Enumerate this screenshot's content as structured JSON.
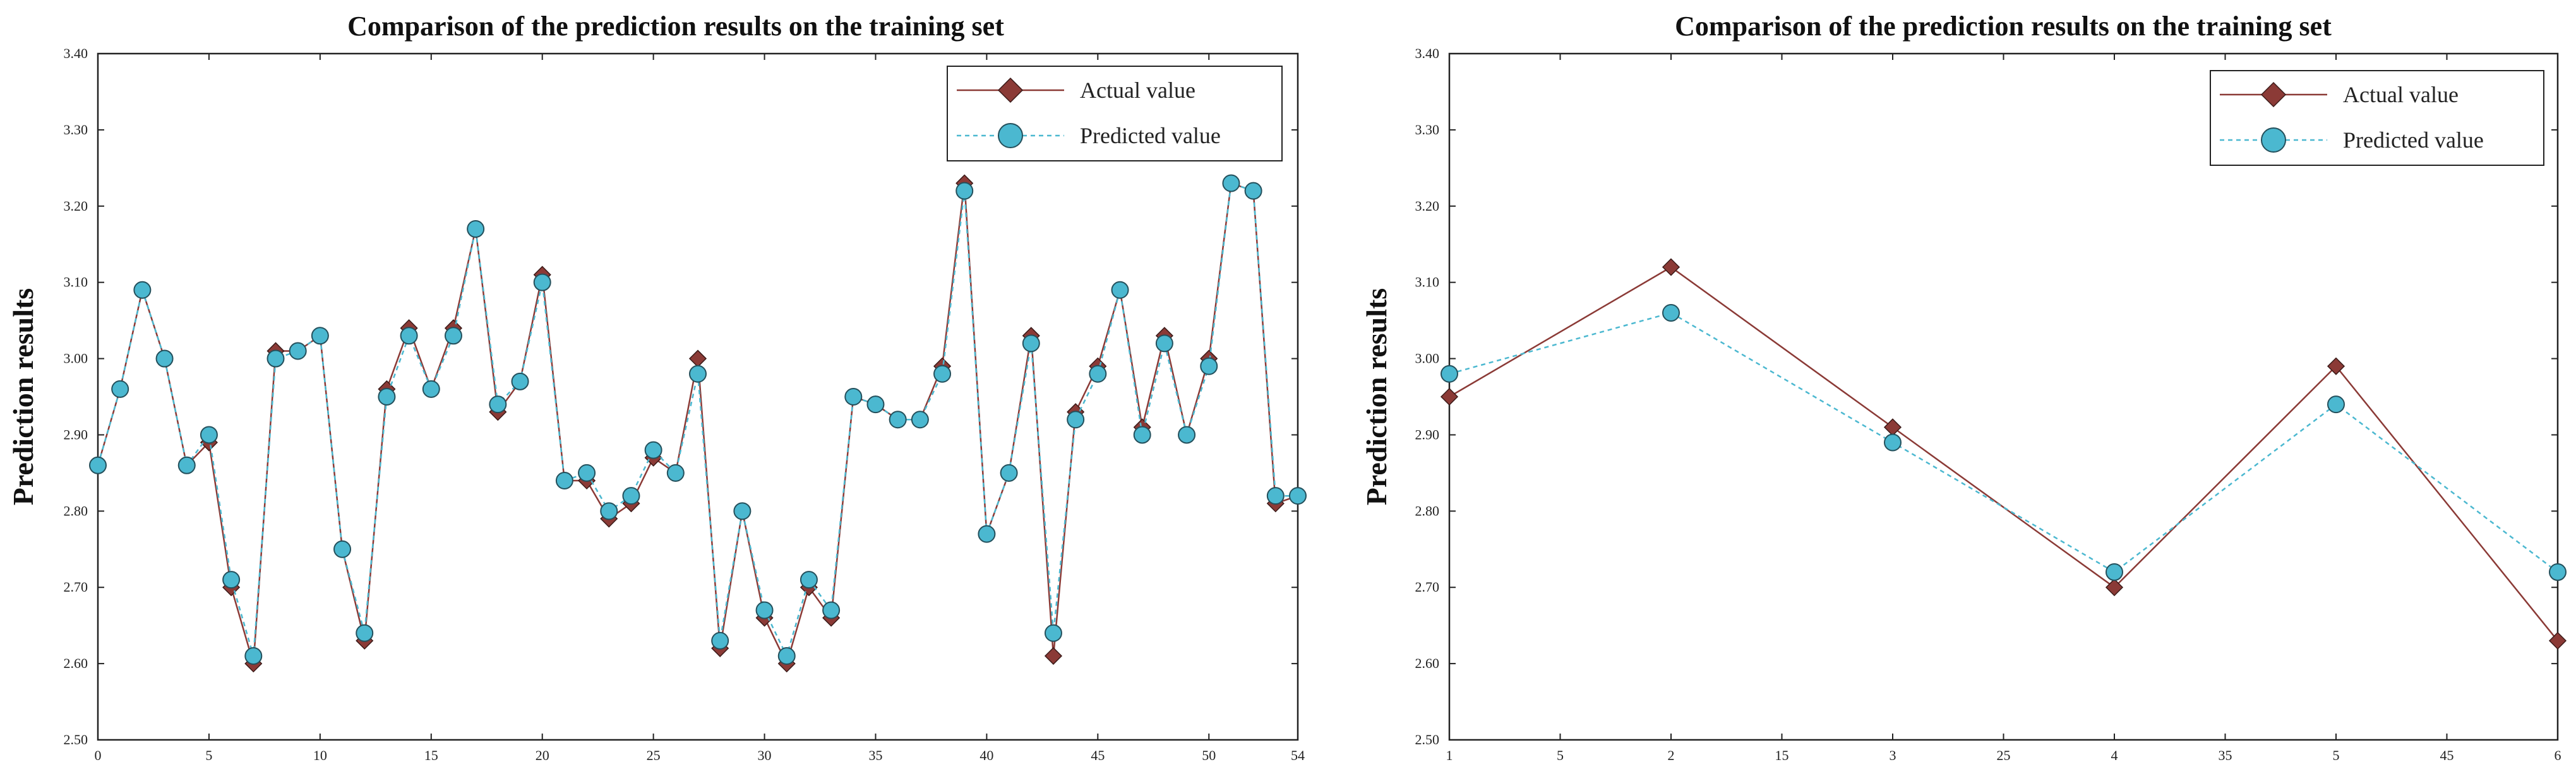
{
  "chart_data": [
    {
      "type": "line",
      "title": "Comparison of the prediction results on the training set",
      "xlabel": "",
      "ylabel": "Prediction results",
      "xlim": [
        0,
        54
      ],
      "ylim": [
        2.5,
        3.4
      ],
      "x_ticks": [
        "0",
        "5",
        "10",
        "15",
        "20",
        "25",
        "30",
        "35",
        "40",
        "45",
        "50",
        "54"
      ],
      "y_ticks": [
        "2.50",
        "2.60",
        "2.70",
        "2.80",
        "2.90",
        "3.00",
        "3.10",
        "3.20",
        "3.30",
        "3.40"
      ],
      "legend_position": "top-right",
      "series": [
        {
          "name": "Actual value",
          "color": "#8B3A36",
          "marker": "diamond",
          "line": "solid",
          "x": [
            0,
            1,
            2,
            3,
            4,
            5,
            6,
            7,
            8,
            9,
            10,
            11,
            12,
            13,
            14,
            15,
            16,
            17,
            18,
            19,
            20,
            21,
            22,
            23,
            24,
            25,
            26,
            27,
            28,
            29,
            30,
            31,
            32,
            33,
            34,
            35,
            36,
            37,
            38,
            39,
            40,
            41,
            42,
            43,
            44,
            45,
            46,
            47,
            48,
            49,
            50,
            51,
            52,
            53,
            54
          ],
          "values": [
            2.86,
            2.96,
            3.09,
            3.0,
            2.86,
            2.89,
            2.7,
            2.6,
            3.01,
            3.01,
            3.03,
            2.75,
            2.63,
            2.96,
            3.04,
            2.96,
            3.04,
            3.17,
            2.93,
            2.97,
            3.11,
            2.84,
            2.84,
            2.79,
            2.81,
            2.87,
            2.85,
            3.0,
            2.62,
            2.8,
            2.66,
            2.6,
            2.7,
            2.66,
            2.95,
            2.94,
            2.92,
            2.92,
            2.99,
            3.23,
            2.77,
            2.85,
            3.03,
            2.61,
            2.93,
            2.99,
            3.09,
            2.91,
            3.03,
            2.9,
            3.0,
            3.23,
            3.22,
            2.81,
            2.82
          ]
        },
        {
          "name": "Predicted value",
          "color": "#4BB8D0",
          "marker": "circle",
          "line": "dashed",
          "x": [
            0,
            1,
            2,
            3,
            4,
            5,
            6,
            7,
            8,
            9,
            10,
            11,
            12,
            13,
            14,
            15,
            16,
            17,
            18,
            19,
            20,
            21,
            22,
            23,
            24,
            25,
            26,
            27,
            28,
            29,
            30,
            31,
            32,
            33,
            34,
            35,
            36,
            37,
            38,
            39,
            40,
            41,
            42,
            43,
            44,
            45,
            46,
            47,
            48,
            49,
            50,
            51,
            52,
            53,
            54
          ],
          "values": [
            2.86,
            2.96,
            3.09,
            3.0,
            2.86,
            2.9,
            2.71,
            2.61,
            3.0,
            3.01,
            3.03,
            2.75,
            2.64,
            2.95,
            3.03,
            2.96,
            3.03,
            3.17,
            2.94,
            2.97,
            3.1,
            2.84,
            2.85,
            2.8,
            2.82,
            2.88,
            2.85,
            2.98,
            2.63,
            2.8,
            2.67,
            2.61,
            2.71,
            2.67,
            2.95,
            2.94,
            2.92,
            2.92,
            2.98,
            3.22,
            2.77,
            2.85,
            3.02,
            2.64,
            2.92,
            2.98,
            3.09,
            2.9,
            3.02,
            2.9,
            2.99,
            3.23,
            3.22,
            2.82,
            2.82
          ]
        }
      ]
    },
    {
      "type": "line",
      "title": "Comparison of the prediction results on the training set",
      "xlabel": "",
      "ylabel": "Prediction results",
      "xlim": [
        1,
        6
      ],
      "ylim": [
        2.5,
        3.4
      ],
      "x_ticks": [
        "1",
        "5",
        "2",
        "15",
        "3",
        "25",
        "4",
        "35",
        "5",
        "45",
        "6"
      ],
      "y_ticks": [
        "2.50",
        "2.60",
        "2.70",
        "2.80",
        "2.90",
        "3.00",
        "3.10",
        "3.20",
        "3.30",
        "3.40"
      ],
      "legend_position": "top-right",
      "series": [
        {
          "name": "Actual value",
          "color": "#8B3A36",
          "marker": "diamond",
          "line": "solid",
          "x": [
            1,
            2,
            3,
            4,
            5,
            6
          ],
          "values": [
            2.95,
            3.12,
            2.91,
            2.7,
            2.99,
            2.63
          ]
        },
        {
          "name": "Predicted value",
          "color": "#4BB8D0",
          "marker": "circle",
          "line": "dashed",
          "x": [
            1,
            2,
            3,
            4,
            5,
            6
          ],
          "values": [
            2.98,
            3.06,
            2.89,
            2.72,
            2.94,
            2.72
          ]
        }
      ]
    }
  ]
}
